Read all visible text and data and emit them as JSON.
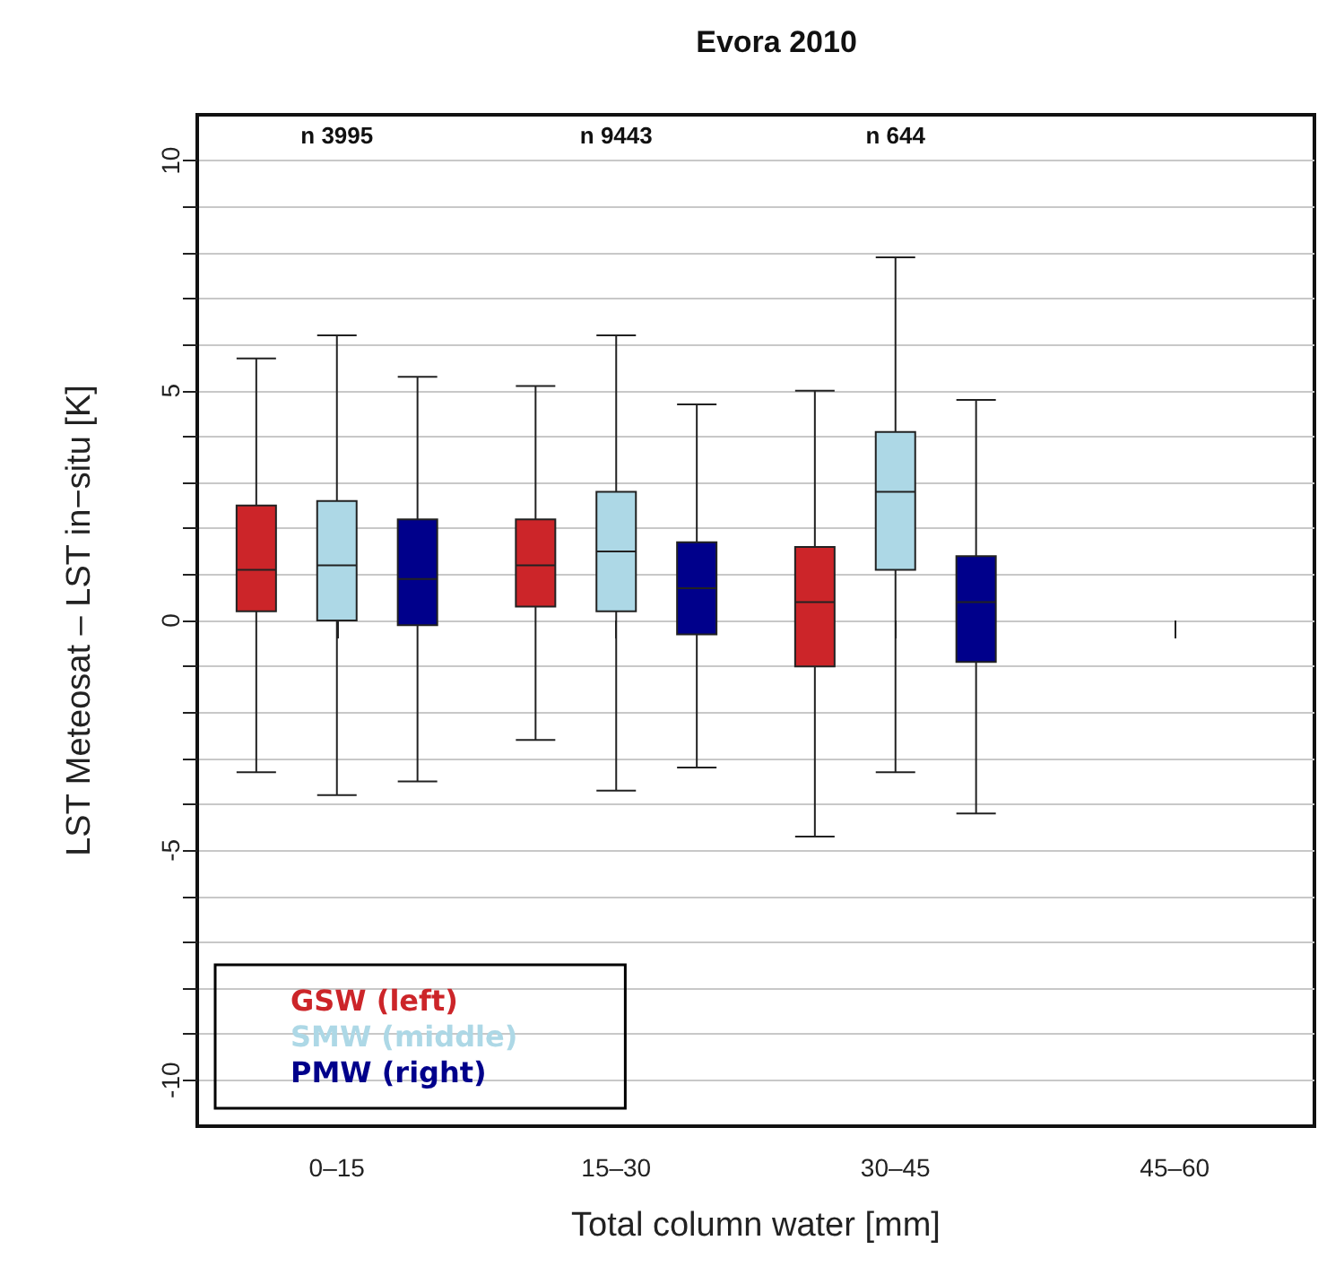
{
  "chart_data": {
    "type": "box",
    "title": "Evora 2010",
    "xlabel": "Total column water [mm]",
    "ylabel": "LST Meteosat – LST in−situ [K]",
    "categories": [
      "0–15",
      "15–30",
      "30–45",
      "45–60"
    ],
    "ylim": [
      -11,
      11
    ],
    "yticks": [
      -10,
      {
        "value": -9,
        "label": null
      },
      {
        "value": -8,
        "label": null
      },
      {
        "value": -7,
        "label": null
      },
      {
        "value": -6,
        "label": null
      },
      -5,
      {
        "value": -4,
        "label": null
      },
      {
        "value": -3,
        "label": null
      },
      {
        "value": -2,
        "label": null
      },
      {
        "value": -1,
        "label": null
      },
      0,
      {
        "value": 1,
        "label": null
      },
      {
        "value": 2,
        "label": null
      },
      {
        "value": 3,
        "label": null
      },
      {
        "value": 4,
        "label": null
      },
      5,
      {
        "value": 6,
        "label": null
      },
      {
        "value": 7,
        "label": null
      },
      {
        "value": 8,
        "label": null
      },
      {
        "value": 9,
        "label": null
      },
      10
    ],
    "grid": "y",
    "legend": "bottom left",
    "series": [
      {
        "name": "GSW (left)",
        "color": "#cc2529",
        "boxes": [
          {
            "low": -3.3,
            "q1": 0.2,
            "median": 1.1,
            "q3": 2.5,
            "high": 5.7
          },
          {
            "low": -2.6,
            "q1": 0.3,
            "median": 1.2,
            "q3": 2.2,
            "high": 5.1
          },
          {
            "low": -4.7,
            "q1": -1.0,
            "median": 0.4,
            "q3": 1.6,
            "high": 5.0
          },
          null
        ]
      },
      {
        "name": "SMW (middle)",
        "color": "#add8e6",
        "boxes": [
          {
            "low": -3.8,
            "q1": 0.0,
            "median": 1.2,
            "q3": 2.6,
            "high": 6.2
          },
          {
            "low": -3.7,
            "q1": 0.2,
            "median": 1.5,
            "q3": 2.8,
            "high": 6.2
          },
          {
            "low": -3.3,
            "q1": 1.1,
            "median": 2.8,
            "q3": 4.1,
            "high": 7.9
          },
          null
        ]
      },
      {
        "name": "PMW (right)",
        "color": "#00008b",
        "boxes": [
          {
            "low": -3.5,
            "q1": -0.1,
            "median": 0.9,
            "q3": 2.2,
            "high": 5.3
          },
          {
            "low": -3.2,
            "q1": -0.3,
            "median": 0.7,
            "q3": 1.7,
            "high": 4.7
          },
          {
            "low": -4.2,
            "q1": -0.9,
            "median": 0.4,
            "q3": 1.4,
            "high": 4.8
          },
          null
        ]
      }
    ],
    "annotations": [
      "n 3995",
      "n 9443",
      "n 644"
    ]
  }
}
